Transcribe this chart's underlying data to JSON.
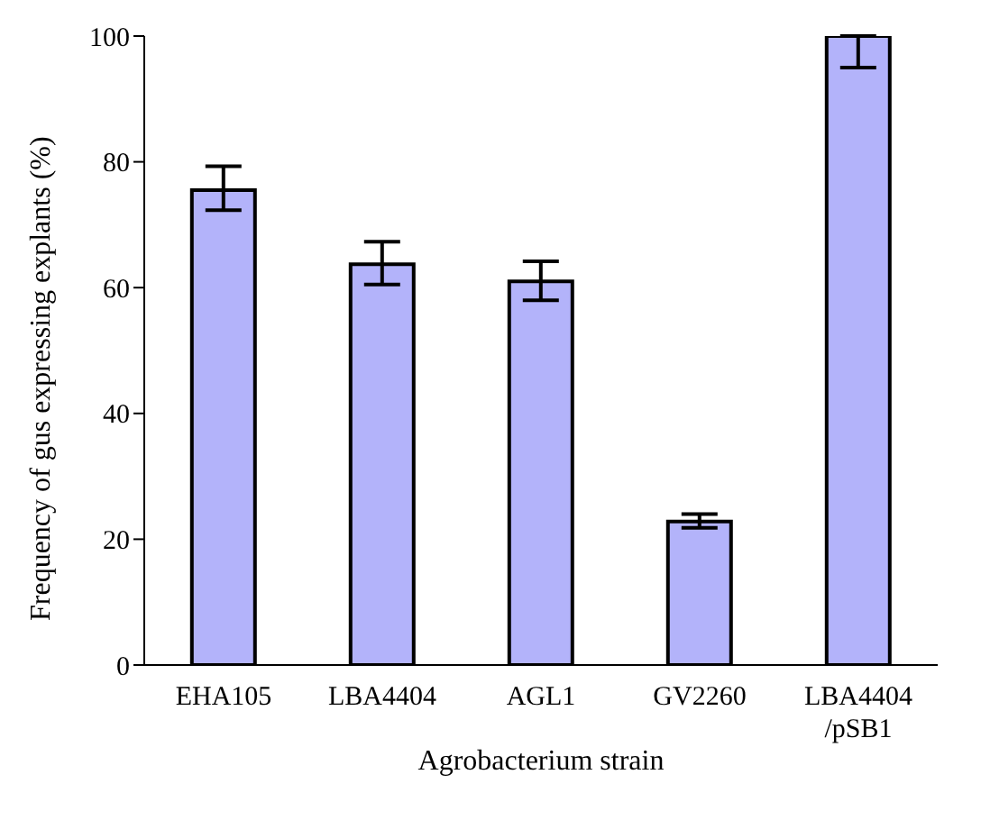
{
  "chart_data": {
    "type": "bar",
    "xlabel": "Agrobacterium strain",
    "ylabel": "Frequency of gus expressing explants (%)",
    "categories": [
      "EHA105",
      "LBA4404",
      "AGL1",
      "GV2260",
      "LBA4404 /pSB1"
    ],
    "values": [
      75.5,
      63.7,
      61,
      22.8,
      100
    ],
    "errors": [
      [
        72.3,
        79.3
      ],
      [
        60.5,
        67.3
      ],
      [
        58,
        64.2
      ],
      [
        21.8,
        24
      ],
      [
        95,
        100
      ]
    ],
    "color": "#b3b3fa",
    "ylim": [
      0,
      100
    ],
    "yticks": [
      0,
      20,
      40,
      60,
      80,
      100
    ],
    "grid": false
  }
}
